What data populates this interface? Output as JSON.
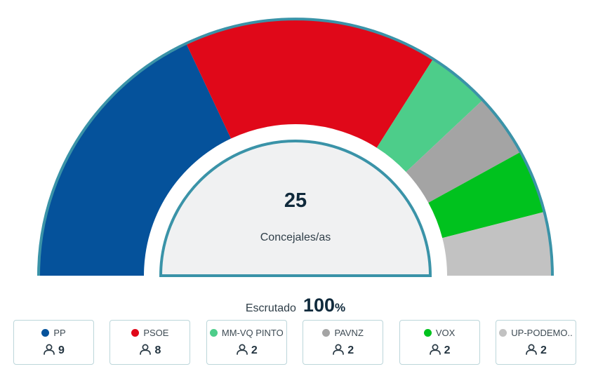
{
  "chart_data": {
    "type": "pie",
    "variant": "hemicycle",
    "total": "25",
    "total_label": "Concejales/as",
    "series": [
      {
        "name": "PP",
        "value": 9,
        "color": "#05529b"
      },
      {
        "name": "PSOE",
        "value": 8,
        "color": "#e00819"
      },
      {
        "name": "MM-VQ PINTO",
        "value": 2,
        "color": "#4dcd8a"
      },
      {
        "name": "PAVNZ",
        "value": 2,
        "color": "#a4a4a4"
      },
      {
        "name": "VOX",
        "value": 2,
        "color": "#00c21e"
      },
      {
        "name": "UP-PODEMO..",
        "value": 2,
        "color": "#c2c2c2"
      }
    ]
  },
  "progress": {
    "label": "Escrutado",
    "value": "100",
    "unit": "%"
  },
  "colors": {
    "border": "#3a93a8",
    "center_fill": "#f0f1f2",
    "card_border": "#bcd6da"
  }
}
